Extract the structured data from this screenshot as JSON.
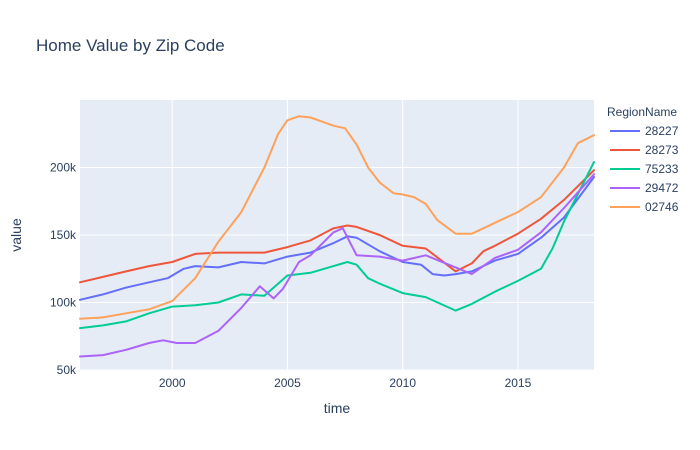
{
  "chart_data": {
    "type": "line",
    "title": "Home Value by Zip Code",
    "xlabel": "time",
    "ylabel": "value",
    "xlim": [
      1996.0,
      2018.3
    ],
    "ylim": [
      50000,
      250000
    ],
    "x_ticks": [
      2000,
      2005,
      2010,
      2015
    ],
    "x_tick_labels": [
      "2000",
      "2005",
      "2010",
      "2015"
    ],
    "y_ticks": [
      50000,
      100000,
      150000,
      200000
    ],
    "y_tick_labels": [
      "50k",
      "100k",
      "150k",
      "200k"
    ],
    "grid": true,
    "legend": {
      "title": "RegionName",
      "placement": "right"
    },
    "series": [
      {
        "name": "28227",
        "color": "#636efa",
        "x": [
          1996.0,
          1997.0,
          1998.0,
          1999.0,
          1999.8,
          2000.5,
          2001.0,
          2002.0,
          2003.0,
          2004.0,
          2005.0,
          2006.0,
          2007.0,
          2007.6,
          2008.0,
          2009.0,
          2010.0,
          2010.8,
          2011.3,
          2011.8,
          2012.3,
          2013.0,
          2014.0,
          2015.0,
          2016.0,
          2017.0,
          2018.3
        ],
        "y": [
          102000,
          106000,
          111000,
          115000,
          118000,
          125000,
          127000,
          126000,
          130000,
          129000,
          134000,
          137000,
          144000,
          149000,
          148000,
          138000,
          130000,
          128000,
          121000,
          120000,
          121000,
          123000,
          131000,
          136000,
          148000,
          163000,
          193000
        ]
      },
      {
        "name": "28273",
        "color": "#ef553b",
        "x": [
          1996.0,
          1997.0,
          1998.0,
          1999.0,
          2000.0,
          2001.0,
          2002.0,
          2003.0,
          2004.0,
          2005.0,
          2006.0,
          2007.0,
          2007.6,
          2008.0,
          2009.0,
          2010.0,
          2011.0,
          2012.3,
          2013.0,
          2013.5,
          2014.0,
          2015.0,
          2016.0,
          2017.0,
          2018.3
        ],
        "y": [
          115000,
          119000,
          123000,
          127000,
          130000,
          136000,
          137000,
          137000,
          137000,
          141000,
          146000,
          155000,
          157000,
          156000,
          150000,
          142000,
          140000,
          123000,
          129000,
          138000,
          142000,
          151000,
          162000,
          176000,
          198000
        ]
      },
      {
        "name": "75233",
        "color": "#00cc96",
        "x": [
          1996.0,
          1997.0,
          1998.0,
          1999.0,
          2000.0,
          2001.0,
          2002.0,
          2003.0,
          2004.0,
          2005.0,
          2006.0,
          2007.0,
          2007.6,
          2008.0,
          2008.5,
          2009.0,
          2010.0,
          2011.0,
          2012.3,
          2013.0,
          2014.0,
          2015.0,
          2016.0,
          2016.5,
          2017.0,
          2018.3
        ],
        "y": [
          81000,
          83000,
          86000,
          92000,
          97000,
          98000,
          100000,
          106000,
          105000,
          120000,
          122000,
          127000,
          130000,
          128000,
          118000,
          114000,
          107000,
          104000,
          94000,
          99000,
          108000,
          116000,
          125000,
          140000,
          160000,
          204000
        ]
      },
      {
        "name": "29472",
        "color": "#ab63fa",
        "x": [
          1996.0,
          1997.0,
          1998.0,
          1999.0,
          1999.6,
          2000.2,
          2001.0,
          2002.0,
          2003.0,
          2003.8,
          2004.4,
          2004.8,
          2005.5,
          2006.0,
          2007.0,
          2007.4,
          2008.0,
          2009.0,
          2010.0,
          2011.0,
          2012.0,
          2013.0,
          2014.0,
          2015.0,
          2016.0,
          2017.0,
          2018.3
        ],
        "y": [
          60000,
          61000,
          65000,
          70000,
          72000,
          70000,
          70000,
          79000,
          96000,
          112000,
          103000,
          110000,
          130000,
          135000,
          152000,
          155000,
          135000,
          134000,
          131000,
          135000,
          128000,
          121000,
          133000,
          139000,
          152000,
          170000,
          195000
        ]
      },
      {
        "name": "02746",
        "color": "#ffa15a",
        "x": [
          1996.0,
          1997.0,
          1998.0,
          1999.0,
          2000.0,
          2001.0,
          2002.0,
          2003.0,
          2004.0,
          2004.6,
          2005.0,
          2005.5,
          2006.0,
          2006.5,
          2007.0,
          2007.5,
          2008.0,
          2008.5,
          2009.0,
          2009.6,
          2010.0,
          2010.5,
          2011.0,
          2011.5,
          2012.3,
          2013.0,
          2013.5,
          2014.0,
          2015.0,
          2016.0,
          2017.0,
          2017.6,
          2018.3
        ],
        "y": [
          88000,
          89000,
          92000,
          95000,
          101000,
          118000,
          145000,
          167000,
          200000,
          225000,
          235000,
          238000,
          237000,
          234000,
          231000,
          229000,
          217000,
          200000,
          189000,
          181000,
          180000,
          178000,
          173000,
          161000,
          151000,
          151000,
          155000,
          159000,
          167000,
          178000,
          200000,
          218000,
          224000
        ]
      }
    ]
  }
}
